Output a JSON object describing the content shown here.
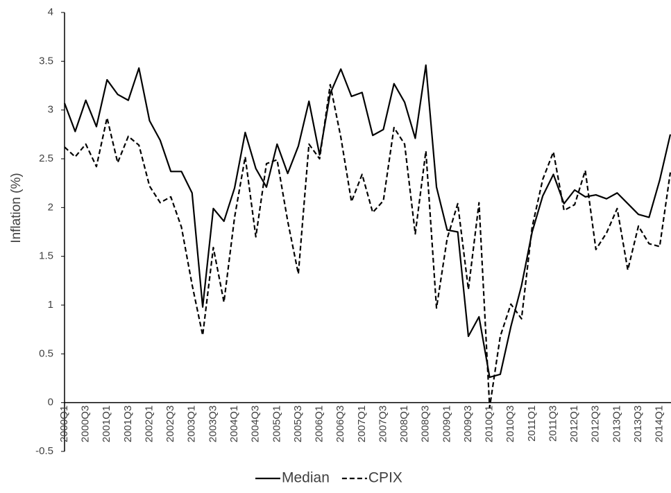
{
  "chart_data": {
    "type": "line",
    "y_label": "Inflation (%)",
    "categories": [
      "2000Q1",
      null,
      "2000Q3",
      null,
      "2001Q1",
      null,
      "2001Q3",
      null,
      "2002Q1",
      null,
      "2002Q3",
      null,
      "2003Q1",
      null,
      "2003Q3",
      null,
      "2004Q1",
      null,
      "2004Q3",
      null,
      "2005Q1",
      null,
      "2005Q3",
      null,
      "2006Q1",
      null,
      "2006Q3",
      null,
      "2007Q1",
      null,
      "2007Q3",
      null,
      "2008Q1",
      null,
      "2008Q3",
      null,
      "2009Q1",
      null,
      "2009Q3",
      null,
      "2010Q1",
      null,
      "2010Q3",
      null,
      "2011Q1",
      null,
      "2011Q3",
      null,
      "2012Q1",
      null,
      "2012Q3",
      null,
      "2013Q1",
      null,
      "2013Q3",
      null,
      "2014Q1",
      null
    ],
    "series": [
      {
        "name": "Median",
        "color": "#000000",
        "line_style": "solid",
        "values": [
          3.07,
          2.78,
          3.1,
          2.83,
          3.31,
          3.16,
          3.1,
          3.43,
          2.89,
          2.69,
          2.37,
          2.37,
          2.15,
          0.98,
          1.99,
          1.86,
          2.2,
          2.77,
          2.4,
          2.21,
          2.65,
          2.35,
          2.63,
          3.09,
          2.54,
          3.17,
          3.42,
          3.14,
          3.18,
          2.74,
          2.8,
          3.27,
          3.08,
          2.71,
          3.46,
          2.21,
          1.77,
          1.75,
          0.68,
          0.88,
          0.26,
          0.29,
          0.78,
          1.2,
          1.75,
          2.12,
          2.34,
          2.04,
          2.18,
          2.11,
          2.13,
          2.09,
          2.15,
          2.04,
          1.93,
          1.9,
          2.28,
          2.75
        ]
      },
      {
        "name": "CPIX",
        "color": "#000000",
        "line_style": "dashed",
        "values": [
          2.62,
          2.52,
          2.65,
          2.42,
          2.92,
          2.46,
          2.73,
          2.64,
          2.22,
          2.05,
          2.11,
          1.8,
          1.21,
          0.69,
          1.59,
          1.03,
          1.9,
          2.52,
          1.7,
          2.45,
          2.49,
          1.86,
          1.32,
          2.65,
          2.5,
          3.26,
          2.72,
          2.06,
          2.34,
          1.95,
          2.07,
          2.82,
          2.65,
          1.73,
          2.58,
          0.97,
          1.68,
          2.04,
          1.16,
          2.05,
          -0.05,
          0.68,
          1.01,
          0.86,
          1.8,
          2.29,
          2.57,
          1.97,
          2.03,
          2.38,
          1.57,
          1.74,
          1.99,
          1.36,
          1.81,
          1.63,
          1.6,
          2.36
        ]
      }
    ],
    "ylim": [
      -0.5,
      4
    ],
    "yticks": [
      -0.5,
      0,
      0.5,
      1,
      1.5,
      2,
      2.5,
      3,
      3.5,
      4
    ],
    "grid": false,
    "legend": "bottom"
  }
}
